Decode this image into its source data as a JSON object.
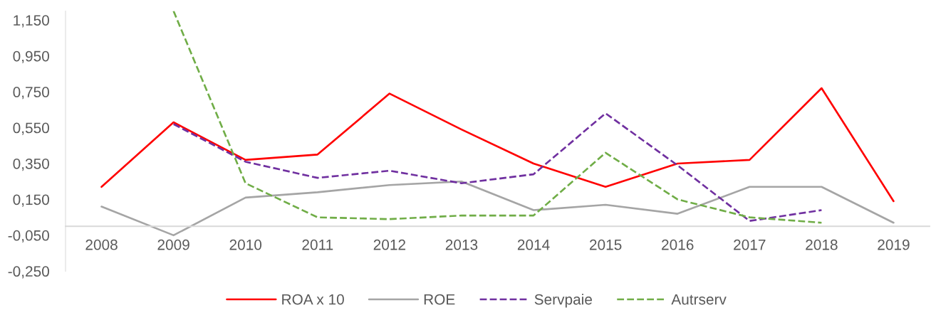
{
  "chart_data": {
    "type": "line",
    "categories": [
      "2008",
      "2009",
      "2010",
      "2011",
      "2012",
      "2013",
      "2014",
      "2015",
      "2016",
      "2017",
      "2018",
      "2019"
    ],
    "ylim": [
      -0.25,
      1.2
    ],
    "yticks": [
      {
        "value": -0.25,
        "label": "-0,250"
      },
      {
        "value": -0.05,
        "label": "-0,050"
      },
      {
        "value": 0.15,
        "label": "0,150"
      },
      {
        "value": 0.35,
        "label": "0,350"
      },
      {
        "value": 0.55,
        "label": "0,550"
      },
      {
        "value": 0.75,
        "label": "0,750"
      },
      {
        "value": 0.95,
        "label": "0,950"
      },
      {
        "value": 1.15,
        "label": "1,150"
      }
    ],
    "legend": "bottom",
    "marker": "none",
    "series": [
      {
        "name": "ROA x 10",
        "color": "#ff0000",
        "line_style": "solid",
        "values": [
          0.22,
          0.58,
          0.37,
          0.4,
          0.74,
          0.54,
          0.35,
          0.22,
          0.35,
          0.37,
          0.77,
          0.14
        ]
      },
      {
        "name": "ROE",
        "color": "#a5a5a5",
        "line_style": "solid",
        "values": [
          0.11,
          -0.05,
          0.16,
          0.19,
          0.23,
          0.25,
          0.09,
          0.12,
          0.07,
          0.22,
          0.22,
          0.02
        ]
      },
      {
        "name": "Servpaie",
        "color": "#7030a0",
        "line_style": "dashed",
        "values": [
          null,
          0.57,
          0.36,
          0.27,
          0.31,
          0.24,
          0.29,
          0.63,
          0.34,
          0.03,
          0.09,
          null
        ]
      },
      {
        "name": "Autrserv",
        "color": "#70ad47",
        "line_style": "dashed",
        "values": [
          null,
          1.2,
          0.24,
          0.05,
          0.04,
          0.06,
          0.06,
          0.41,
          0.15,
          0.05,
          0.02,
          null
        ]
      }
    ]
  }
}
